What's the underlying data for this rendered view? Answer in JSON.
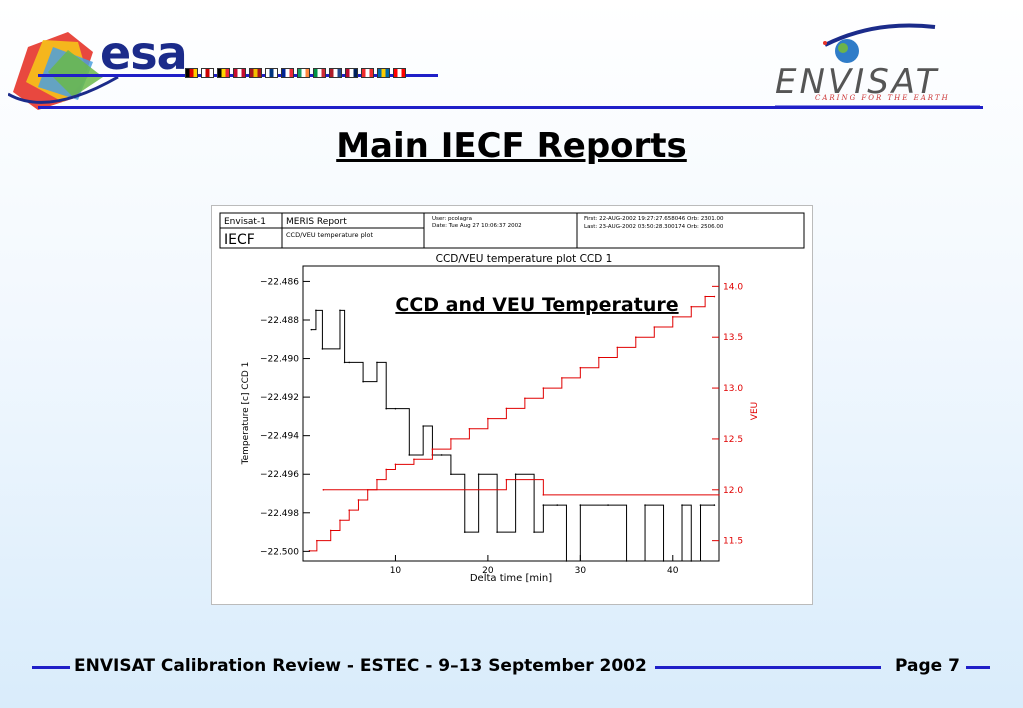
{
  "header": {
    "esa_logo_text": "esa",
    "envisat_logo_text": "ENVISAT",
    "envisat_tagline": "CARING FOR THE EARTH",
    "flag_colors": [
      [
        "#000000",
        "#dd0000",
        "#ffcc00"
      ],
      [
        "#ffffff",
        "#cc0000",
        "#ffffff"
      ],
      [
        "#000000",
        "#ffd700",
        "#ed2939"
      ],
      [
        "#c60c30",
        "#ffffff",
        "#c60c30"
      ],
      [
        "#aa151b",
        "#f1bf00",
        "#aa151b"
      ],
      [
        "#ffffff",
        "#003580",
        "#ffffff"
      ],
      [
        "#002395",
        "#ffffff",
        "#ed2939"
      ],
      [
        "#169b62",
        "#ffffff",
        "#ff883e"
      ],
      [
        "#009246",
        "#ffffff",
        "#ce2b37"
      ],
      [
        "#ae1c28",
        "#ffffff",
        "#21468b"
      ],
      [
        "#ba0c2f",
        "#ffffff",
        "#00205b"
      ],
      [
        "#ef2b2d",
        "#ffffff",
        "#ef2b2d"
      ],
      [
        "#006aa7",
        "#fecc00",
        "#006aa7"
      ],
      [
        "#ff0000",
        "#ffffff",
        "#ff0000"
      ]
    ]
  },
  "slide_title": "Main IECF Reports",
  "report": {
    "mission": "Envisat-1",
    "facility": "IECF",
    "report_name": "MERIS Report",
    "plot_name": "CCD/VEU temperature plot",
    "user_line": "User: pcolagra",
    "date_line": "Date: Tue Aug 27 10:06:37 2002",
    "first_line": "First: 22-AUG-2002 19:27:27.658046 Orb: 2301.00",
    "last_line": "Last: 23-AUG-2002 03:50:28.300174 Orb: 2506.00"
  },
  "chart_data": {
    "type": "line",
    "title": "CCD/VEU temperature plot CCD 1",
    "annotation": "CCD and VEU Temperature",
    "xlabel": "Delta time [min]",
    "ylabel_left": "Temperature [c] CCD 1",
    "ylabel_right": "VEU",
    "xlim": [
      0,
      45
    ],
    "x_ticks": [
      10,
      20,
      30,
      40
    ],
    "ylim_left": [
      -22.5005,
      -22.4852
    ],
    "y_ticks_left": [
      "-22.486",
      "-22.488",
      "-22.490",
      "-22.492",
      "-22.494",
      "-22.496",
      "-22.498",
      "-22.500"
    ],
    "ylim_right": [
      11.3,
      14.2
    ],
    "y_ticks_right": [
      "14.0",
      "13.5",
      "13.0",
      "12.5",
      "12.0",
      "11.5"
    ],
    "series": [
      {
        "axis": "left",
        "color": "#000000",
        "x": [
          0.9,
          1.4,
          2.1,
          4.0,
          4.5,
          5.0,
          6.5,
          8.0,
          9.0,
          10.0,
          11.5,
          13.0,
          14.0,
          15.0,
          16.0,
          17.5,
          19.0,
          21.0,
          23.0,
          25.0,
          26.0,
          27.5,
          28.5,
          30.0,
          33.0,
          35.0,
          37.0,
          39.0,
          41.0,
          42.0,
          43.0,
          44.5
        ],
        "y": [
          -22.4885,
          -22.4875,
          -22.4895,
          -22.4875,
          -22.4902,
          -22.4902,
          -22.4912,
          -22.4902,
          -22.4926,
          -22.4926,
          -22.495,
          -22.4935,
          -22.495,
          -22.495,
          -22.496,
          -22.499,
          -22.496,
          -22.499,
          -22.496,
          -22.499,
          -22.4976,
          -22.4976,
          -22.501,
          -22.4976,
          -22.4976,
          -22.501,
          -22.4976,
          -22.501,
          -22.4976,
          -22.501,
          -22.4976,
          -22.4976
        ]
      },
      {
        "axis": "right",
        "color": "#e00000",
        "x": [
          0.7,
          1.5,
          3.0,
          4.0,
          5.0,
          6.0,
          7.0,
          8.0,
          9.0,
          10.0,
          12.0,
          14.0,
          16.0,
          18.0,
          20.0,
          22.0,
          24.0,
          26.0,
          28.0,
          30.0,
          32.0,
          34.0,
          36.0,
          38.0,
          40.0,
          42.0,
          43.5,
          44.5
        ],
        "y": [
          11.4,
          11.5,
          11.6,
          11.7,
          11.8,
          11.9,
          12.0,
          12.1,
          12.2,
          12.25,
          12.3,
          12.4,
          12.5,
          12.6,
          12.7,
          12.8,
          12.9,
          13.0,
          13.1,
          13.2,
          13.3,
          13.4,
          13.5,
          13.6,
          13.7,
          13.8,
          13.9,
          13.9
        ]
      },
      {
        "axis": "right",
        "color": "#e00000",
        "x": [
          2.2,
          22.0,
          26.0,
          45.0
        ],
        "y": [
          12.0,
          12.1,
          11.95,
          11.95
        ]
      }
    ]
  },
  "footer": {
    "text": "ENVISAT Calibration Review - ESTEC - 9–13 September  2002",
    "page_label": "Page",
    "page_number": "7"
  }
}
